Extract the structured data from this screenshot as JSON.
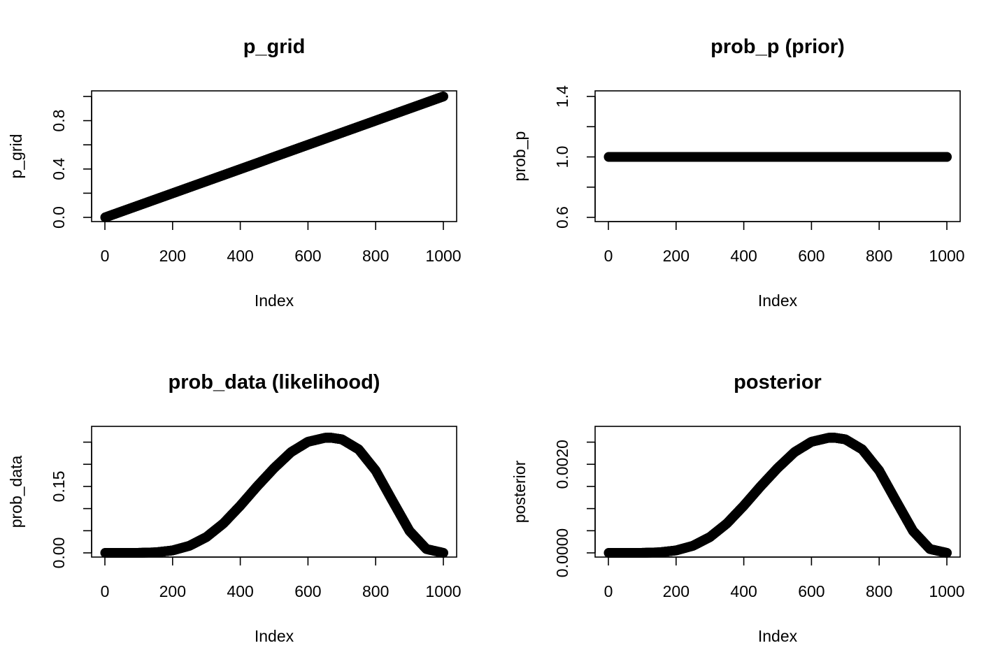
{
  "chart_data": [
    {
      "type": "scatter",
      "title": "p_grid",
      "xlabel": "Index",
      "ylabel": "p_grid",
      "xlim": [
        0,
        1000
      ],
      "ylim": [
        0,
        1
      ],
      "x_ticks": [
        0,
        200,
        400,
        600,
        800,
        1000
      ],
      "x_tick_labels": [
        "0",
        "200",
        "400",
        "600",
        "800",
        "1000"
      ],
      "y_ticks": [
        0,
        0.2,
        0.4,
        0.6,
        0.8,
        1.0
      ],
      "y_tick_labels": [
        "0.0",
        "",
        "0.4",
        "",
        "0.8",
        ""
      ],
      "series": [
        {
          "x": [
            1,
            50,
            100,
            150,
            200,
            250,
            300,
            350,
            400,
            450,
            500,
            550,
            600,
            650,
            700,
            750,
            800,
            850,
            900,
            950,
            1000
          ],
          "y": [
            0,
            0.049,
            0.099,
            0.149,
            0.199,
            0.249,
            0.299,
            0.349,
            0.399,
            0.449,
            0.5,
            0.55,
            0.6,
            0.65,
            0.7,
            0.75,
            0.8,
            0.85,
            0.9,
            0.95,
            1.0
          ]
        }
      ]
    },
    {
      "type": "scatter",
      "title": "prob_p (prior)",
      "xlabel": "Index",
      "ylabel": "prob_p",
      "xlim": [
        0,
        1000
      ],
      "ylim": [
        0.6,
        1.4
      ],
      "x_ticks": [
        0,
        200,
        400,
        600,
        800,
        1000
      ],
      "x_tick_labels": [
        "0",
        "200",
        "400",
        "600",
        "800",
        "1000"
      ],
      "y_ticks": [
        0.6,
        0.8,
        1.0,
        1.2,
        1.4
      ],
      "y_tick_labels": [
        "0.6",
        "",
        "1.0",
        "",
        "1.4"
      ],
      "series": [
        {
          "x": [
            1,
            50,
            100,
            150,
            200,
            250,
            300,
            350,
            400,
            450,
            500,
            550,
            600,
            650,
            700,
            750,
            800,
            850,
            900,
            950,
            1000
          ],
          "y": [
            1,
            1,
            1,
            1,
            1,
            1,
            1,
            1,
            1,
            1,
            1,
            1,
            1,
            1,
            1,
            1,
            1,
            1,
            1,
            1,
            1
          ]
        }
      ]
    },
    {
      "type": "scatter",
      "title": "prob_data (likelihood)",
      "xlabel": "Index",
      "ylabel": "prob_data",
      "xlim": [
        0,
        1000
      ],
      "ylim": [
        0,
        0.273
      ],
      "x_ticks": [
        0,
        200,
        400,
        600,
        800,
        1000
      ],
      "x_tick_labels": [
        "0",
        "200",
        "400",
        "600",
        "800",
        "1000"
      ],
      "y_ticks": [
        0,
        0.05,
        0.1,
        0.15,
        0.2,
        0.25
      ],
      "y_tick_labels": [
        "0.00",
        "",
        "",
        "0.15",
        "",
        ""
      ],
      "series": [
        {
          "x": [
            1,
            50,
            100,
            150,
            200,
            250,
            300,
            350,
            400,
            450,
            500,
            550,
            600,
            650,
            667,
            700,
            750,
            800,
            850,
            900,
            950,
            1000
          ],
          "y": [
            0,
            0.0,
            0.0001,
            0.0012,
            0.0055,
            0.016,
            0.0357,
            0.0663,
            0.1065,
            0.1504,
            0.1914,
            0.2274,
            0.2508,
            0.2597,
            0.2601,
            0.2563,
            0.2335,
            0.1858,
            0.1171,
            0.0495,
            0.0086,
            0
          ]
        }
      ]
    },
    {
      "type": "scatter",
      "title": "posterior",
      "xlabel": "Index",
      "ylabel": "posterior",
      "xlim": [
        0,
        1000
      ],
      "ylim": [
        0,
        0.00273
      ],
      "x_ticks": [
        0,
        200,
        400,
        600,
        800,
        1000
      ],
      "x_tick_labels": [
        "0",
        "200",
        "400",
        "600",
        "800",
        "1000"
      ],
      "y_ticks": [
        0,
        0.0005,
        0.001,
        0.0015,
        0.002,
        0.0025
      ],
      "y_tick_labels": [
        "0.0000",
        "",
        "",
        "",
        "0.0020",
        ""
      ],
      "series": [
        {
          "x": [
            1,
            50,
            100,
            150,
            200,
            250,
            300,
            350,
            400,
            450,
            500,
            550,
            600,
            650,
            667,
            700,
            750,
            800,
            850,
            900,
            950,
            1000
          ],
          "y": [
            0,
            0.0,
            1e-06,
            1.2e-05,
            5.5e-05,
            0.00016,
            0.000357,
            0.000663,
            0.001065,
            0.001504,
            0.001914,
            0.002274,
            0.002508,
            0.002597,
            0.002601,
            0.002563,
            0.002335,
            0.001858,
            0.001171,
            0.000495,
            8.6e-05,
            0
          ]
        }
      ]
    }
  ]
}
